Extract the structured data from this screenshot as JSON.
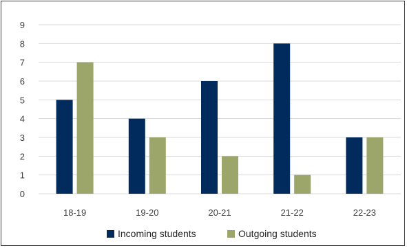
{
  "chart_data": {
    "type": "bar",
    "categories": [
      "18-19",
      "19-20",
      "20-21",
      "21-22",
      "22-23"
    ],
    "series": [
      {
        "name": "Incoming students",
        "values": [
          5,
          4,
          6,
          8,
          3
        ],
        "color": "#002b5c"
      },
      {
        "name": "Outgoing students",
        "values": [
          7,
          3,
          2,
          1,
          3
        ],
        "color": "#9ca66b"
      }
    ],
    "ylim": [
      0,
      9
    ],
    "yticks": [
      0,
      1,
      2,
      3,
      4,
      5,
      6,
      7,
      8,
      9
    ],
    "grid": true,
    "legend": "bottom",
    "border_color": "#1f3a5f",
    "grid_color": "#d9d9d9"
  }
}
